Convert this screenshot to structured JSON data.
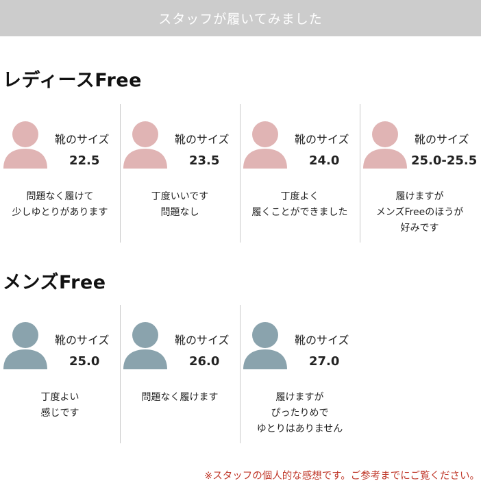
{
  "banner": {
    "title": "スタッフが履いてみました"
  },
  "ladies": {
    "title": "レディースFree",
    "avatar_color": "#e0b4b4",
    "cards": [
      {
        "caption": "靴のサイズ",
        "size": "22.5",
        "comment": [
          "問題なく履けて",
          "少しゆとりがあります"
        ]
      },
      {
        "caption": "靴のサイズ",
        "size": "23.5",
        "comment": [
          "丁度いいです",
          "問題なし"
        ]
      },
      {
        "caption": "靴のサイズ",
        "size": "24.0",
        "comment": [
          "丁度よく",
          "履くことができました"
        ]
      },
      {
        "caption": "靴のサイズ",
        "size": "25.0-25.5",
        "comment": [
          "履けますが",
          "メンズFreeのほうが",
          "好みです"
        ]
      }
    ]
  },
  "mens": {
    "title": "メンズFree",
    "avatar_color": "#8aa3ad",
    "cards": [
      {
        "caption": "靴のサイズ",
        "size": "25.0",
        "comment": [
          "丁度よい",
          "感じです"
        ]
      },
      {
        "caption": "靴のサイズ",
        "size": "26.0",
        "comment": [
          "問題なく履けます"
        ]
      },
      {
        "caption": "靴のサイズ",
        "size": "27.0",
        "comment": [
          "履けますが",
          "ぴったりめで",
          "ゆとりはありません"
        ]
      }
    ]
  },
  "note": {
    "text": "※スタッフの個人的な感想です。ご参考までにご覧ください。",
    "color": "#c0392b"
  }
}
